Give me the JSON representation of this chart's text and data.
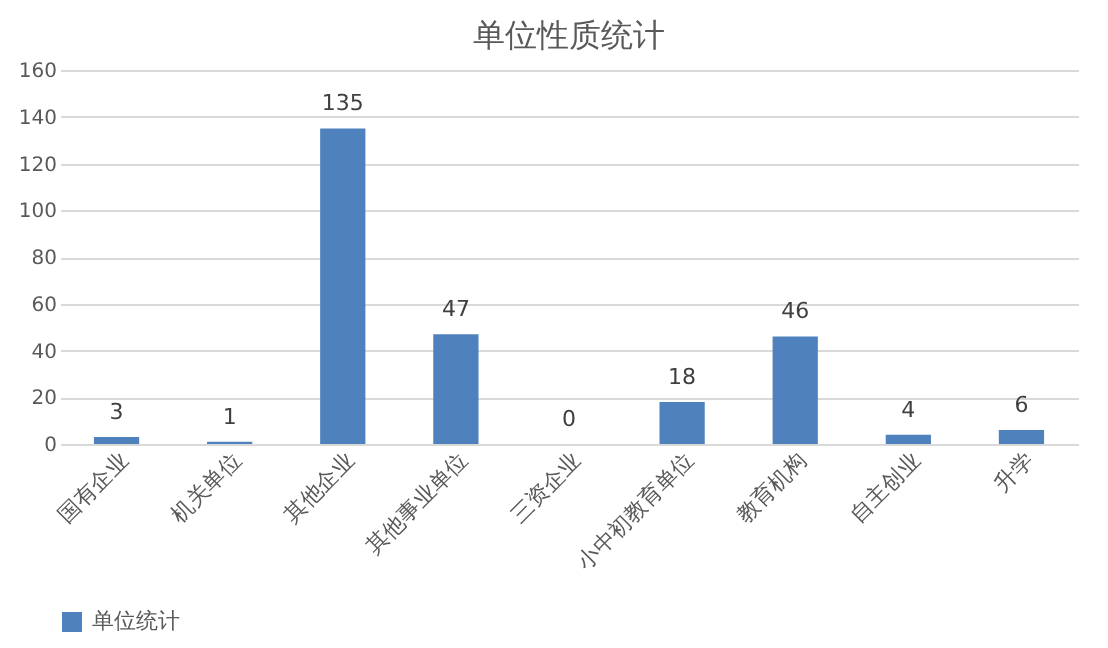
{
  "chart_data": {
    "type": "bar",
    "title": "单位性质统计",
    "categories": [
      "国有企业",
      "机关单位",
      "其他企业",
      "其他事业单位",
      "三资企业",
      "小中初教育单位",
      "教育机构",
      "自主创业",
      "升学"
    ],
    "series": [
      {
        "name": "单位统计",
        "color": "#4f81bd",
        "values": [
          3,
          1,
          135,
          47,
          0,
          18,
          46,
          4,
          6
        ]
      }
    ],
    "ylim": [
      0,
      160
    ],
    "yticks": [
      0,
      20,
      40,
      60,
      80,
      100,
      120,
      140,
      160
    ],
    "grid": "y",
    "legend": "bottom",
    "data_labels": true
  }
}
